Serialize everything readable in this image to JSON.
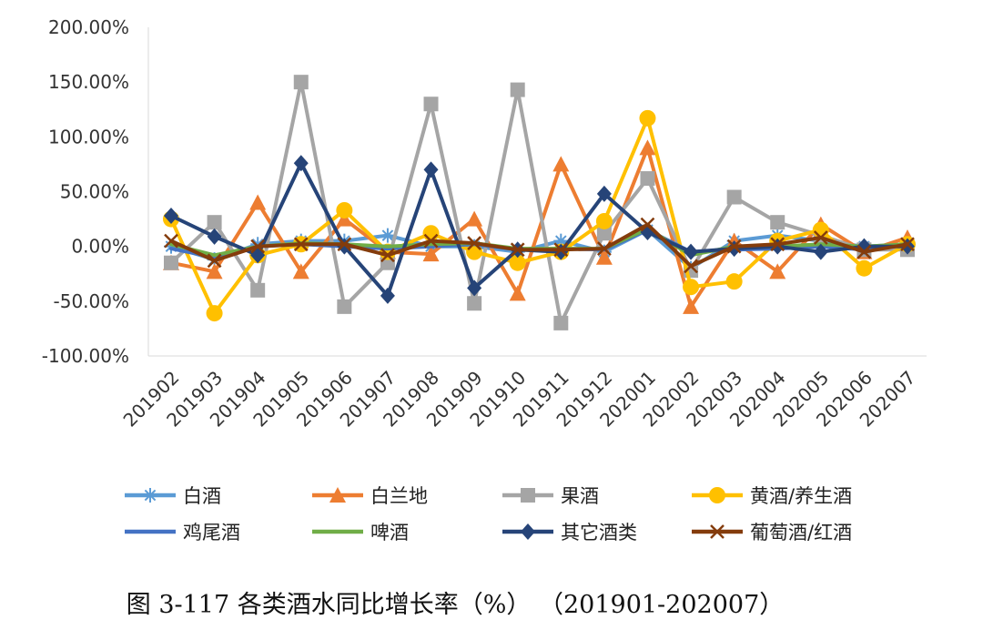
{
  "chart_data": {
    "type": "line",
    "title": "",
    "xlabel": "",
    "ylabel": "",
    "ylim": [
      -100,
      200
    ],
    "ytick_values": [
      -100,
      -50,
      0,
      50,
      100,
      150,
      200
    ],
    "ytick_labels": [
      "-100.00%",
      "-50.00%",
      "0.00%",
      "50.00%",
      "100.00%",
      "150.00%",
      "200.00%"
    ],
    "categories": [
      "201902",
      "201903",
      "201904",
      "201905",
      "201906",
      "201907",
      "201908",
      "201909",
      "201910",
      "201911",
      "201912",
      "202001",
      "202002",
      "202003",
      "202004",
      "202005",
      "202006",
      "202007"
    ],
    "series": [
      {
        "name": "白酒",
        "color": "#5B9BD5",
        "marker": "star",
        "values": [
          0,
          -12,
          2,
          5,
          5,
          10,
          0,
          0,
          -5,
          5,
          -5,
          15,
          -20,
          5,
          10,
          5,
          0,
          2
        ]
      },
      {
        "name": "白兰地",
        "color": "#ED7D31",
        "marker": "triangle",
        "values": [
          -15,
          -23,
          40,
          -23,
          25,
          -5,
          -7,
          25,
          -43,
          75,
          -10,
          90,
          -55,
          5,
          -23,
          20,
          -5,
          8
        ]
      },
      {
        "name": "果酒",
        "color": "#A5A5A5",
        "marker": "square",
        "values": [
          -15,
          22,
          -40,
          150,
          -55,
          -15,
          130,
          -52,
          143,
          -70,
          12,
          62,
          -22,
          45,
          22,
          10,
          -3,
          -3
        ]
      },
      {
        "name": "黄酒/养生酒",
        "color": "#FFC000",
        "marker": "circle",
        "values": [
          25,
          -61,
          -8,
          2,
          33,
          -5,
          12,
          -5,
          -15,
          -5,
          23,
          117,
          -37,
          -32,
          5,
          15,
          -20,
          2
        ]
      },
      {
        "name": "鸡尾酒",
        "color": "#4472C4",
        "marker": "none",
        "values": [
          -2,
          -10,
          0,
          2,
          0,
          -2,
          0,
          2,
          -3,
          -2,
          -3,
          15,
          -5,
          -3,
          -2,
          0,
          -3,
          2
        ]
      },
      {
        "name": "啤酒",
        "color": "#70AD47",
        "marker": "none",
        "values": [
          2,
          -8,
          0,
          3,
          2,
          0,
          2,
          3,
          -2,
          -2,
          -2,
          16,
          -8,
          0,
          0,
          2,
          0,
          2
        ]
      },
      {
        "name": "其它酒类",
        "color": "#264478",
        "marker": "diamond",
        "values": [
          28,
          9,
          -8,
          76,
          0,
          -45,
          70,
          -38,
          -3,
          -5,
          48,
          13,
          -5,
          -2,
          0,
          -5,
          0,
          0
        ]
      },
      {
        "name": "葡萄酒/红酒",
        "color": "#843C0C",
        "marker": "x",
        "values": [
          5,
          -13,
          0,
          2,
          2,
          -8,
          5,
          3,
          -3,
          -3,
          -2,
          20,
          -18,
          0,
          2,
          8,
          -5,
          2
        ]
      }
    ]
  },
  "caption": "图 3-117  各类酒水同比增长率（%）  （201901-202007）"
}
